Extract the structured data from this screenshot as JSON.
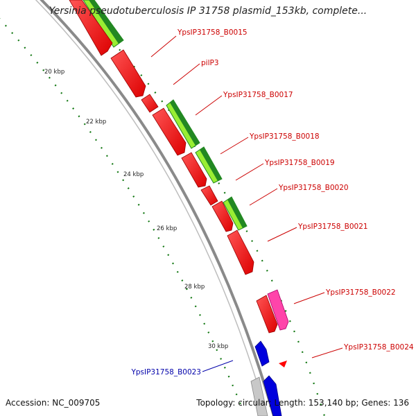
{
  "title": "Yersinia pseudotuberculosis IP 31758 plasmid_153kb, complete...",
  "accession": "Accession: NC_009705",
  "summary": "Topology: circular; Length: 153,140 bp; Genes: 136",
  "colors": {
    "backbone": "#8a8a8a",
    "gene_forward": "#ff0000",
    "gene_pink": "#ff44aa",
    "gene_blue": "#0000dd",
    "gene_grey": "#c8c8c8",
    "feature_light": "#99ee33",
    "feature_dark": "#228822",
    "tick": "#117711",
    "label_red": "#cc0000",
    "label_blue": "#0000aa"
  },
  "scale_labels": [
    "20 kbp",
    "22 kbp",
    "24 kbp",
    "26 kbp",
    "28 kbp",
    "30 kbp"
  ],
  "gene_labels": [
    {
      "text": "YpsIP31758_B0015",
      "color": "red"
    },
    {
      "text": "pilP3",
      "color": "red"
    },
    {
      "text": "YpsIP31758_B0017",
      "color": "red"
    },
    {
      "text": "YpsIP31758_B0018",
      "color": "red"
    },
    {
      "text": "YpsIP31758_B0019",
      "color": "red"
    },
    {
      "text": "YpsIP31758_B0020",
      "color": "red"
    },
    {
      "text": "YpsIP31758_B0021",
      "color": "red"
    },
    {
      "text": "YpsIP31758_B0022",
      "color": "red"
    },
    {
      "text": "YpsIP31758_B0024",
      "color": "red"
    },
    {
      "text": "YpsIP31758_B0023",
      "color": "blue"
    }
  ]
}
